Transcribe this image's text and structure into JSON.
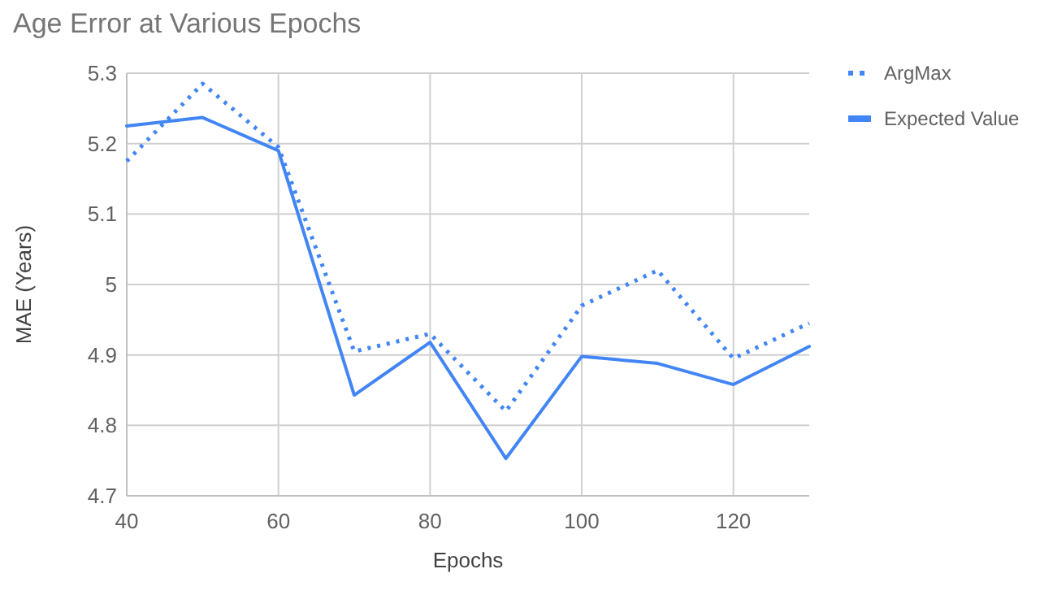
{
  "chart_data": {
    "type": "line",
    "title": "Age Error at Various Epochs",
    "xlabel": "Epochs",
    "ylabel": "MAE (Years)",
    "x": [
      40,
      50,
      60,
      70,
      80,
      90,
      100,
      110,
      120,
      130
    ],
    "series": [
      {
        "name": "ArgMax",
        "color": "#4285f4",
        "line_style": "dotted",
        "values": [
          5.175,
          5.285,
          5.195,
          4.905,
          4.93,
          4.82,
          4.97,
          5.02,
          4.895,
          4.945
        ]
      },
      {
        "name": "Expected Value",
        "color": "#4285f4",
        "line_style": "solid",
        "values": [
          5.225,
          5.237,
          5.19,
          4.843,
          4.918,
          4.753,
          4.898,
          4.888,
          4.858,
          4.912
        ]
      }
    ],
    "xlim": [
      40,
      130
    ],
    "xticks": [
      40,
      60,
      80,
      100,
      120
    ],
    "ylim": [
      4.7,
      5.3
    ],
    "yticks": [
      4.7,
      4.8,
      4.9,
      5,
      5.1,
      5.2,
      5.3
    ],
    "grid": true,
    "legend": "top right",
    "marker": "none"
  }
}
